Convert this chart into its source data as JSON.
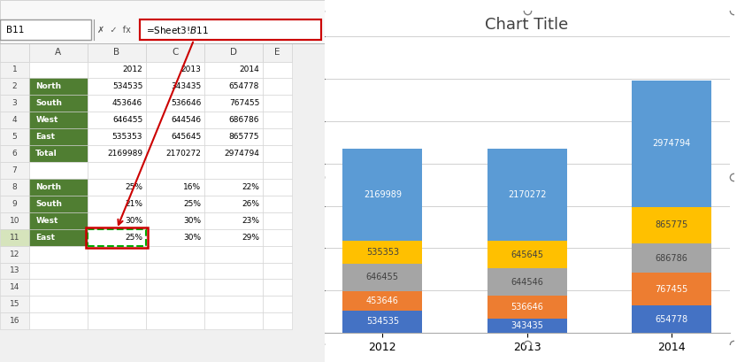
{
  "categories": [
    "2012",
    "2013",
    "2014"
  ],
  "series": {
    "North": [
      534535,
      343435,
      654778
    ],
    "South": [
      453646,
      536646,
      767455
    ],
    "West": [
      646455,
      644546,
      686786
    ],
    "East": [
      535353,
      645645,
      865775
    ],
    "Total": [
      2169989,
      2170272,
      2974794
    ]
  },
  "pct": {
    "North": [
      "25%",
      "16%",
      "22%"
    ],
    "South": [
      "21%",
      "25%",
      "26%"
    ],
    "West": [
      "30%",
      "30%",
      "23%"
    ],
    "East": [
      "25%",
      "30%",
      "29%"
    ]
  },
  "colors": {
    "North": "#4472C4",
    "South": "#ED7D31",
    "West": "#A5A5A5",
    "East": "#FFC000",
    "Total": "#5B9BD5"
  },
  "label_colors": {
    "North": "#FFFFFF",
    "South": "#FFFFFF",
    "West": "#404040",
    "East": "#404040",
    "Total": "#FFFFFF"
  },
  "title": "Chart Title",
  "ylim": [
    0,
    7000000
  ],
  "yticks": [
    0,
    1000000,
    2000000,
    3000000,
    4000000,
    5000000,
    6000000,
    7000000
  ],
  "col_headers": [
    "",
    "A",
    "B",
    "C",
    "D",
    "E"
  ],
  "row_labels": [
    "1",
    "2",
    "3",
    "4",
    "5",
    "6",
    "7",
    "8",
    "9",
    "10",
    "11",
    "12",
    "13",
    "14",
    "15",
    "16"
  ],
  "cell_label_color": "#FFFFFF",
  "green_fill": "#507E32",
  "header_bg": "#D9D9D9",
  "formula_bar_text": "=Sheet3!$B$11",
  "cell_ref": "B11"
}
